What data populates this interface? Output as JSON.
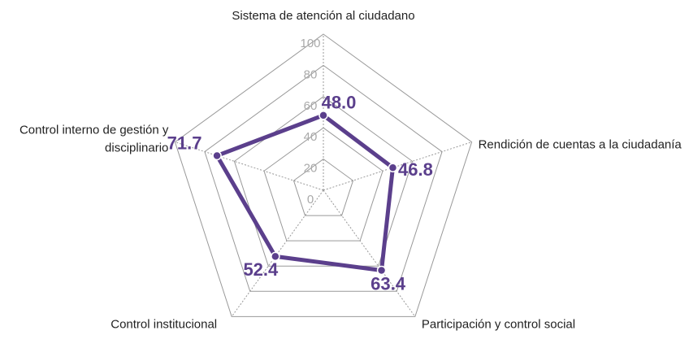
{
  "chart_data": {
    "type": "radar",
    "categories": [
      "Sistema de atención al ciudadano",
      "Rendición de cuentas a la ciudadanía",
      "Participación y control social",
      "Control institucional",
      "Control interno de gestión y disciplinario"
    ],
    "values": [
      48.0,
      46.8,
      63.4,
      52.4,
      71.7
    ],
    "value_labels": [
      "48.0",
      "46.8",
      "63.4",
      "52.4",
      "71.7"
    ],
    "color": "#5b3f8c",
    "ylim": [
      0,
      100
    ],
    "yticks": [
      0,
      20,
      40,
      60,
      80,
      100
    ],
    "grid": true
  }
}
